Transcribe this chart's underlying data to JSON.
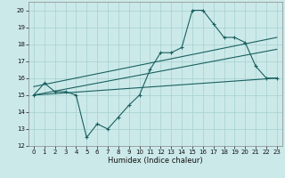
{
  "xlabel": "Humidex (Indice chaleur)",
  "xlim": [
    -0.5,
    23.5
  ],
  "ylim": [
    12,
    20.5
  ],
  "yticks": [
    12,
    13,
    14,
    15,
    16,
    17,
    18,
    19,
    20
  ],
  "xticks": [
    0,
    1,
    2,
    3,
    4,
    5,
    6,
    7,
    8,
    9,
    10,
    11,
    12,
    13,
    14,
    15,
    16,
    17,
    18,
    19,
    20,
    21,
    22,
    23
  ],
  "background_color": "#cce9e9",
  "grid_color": "#aad4d4",
  "line_color": "#1a6060",
  "line1_x": [
    0,
    1,
    2,
    3,
    4,
    5,
    6,
    7,
    8,
    9,
    10,
    11,
    12,
    13,
    14,
    15,
    16,
    17,
    18,
    19,
    20,
    21,
    22,
    23
  ],
  "line1_y": [
    15,
    15.7,
    15.2,
    15.2,
    15.0,
    12.5,
    13.3,
    13.0,
    13.7,
    14.4,
    15.0,
    16.5,
    17.5,
    17.5,
    17.8,
    20.0,
    20.0,
    19.2,
    18.4,
    18.4,
    18.1,
    16.7,
    16.0,
    16.0
  ],
  "line2_x": [
    0,
    23
  ],
  "line2_y": [
    15.0,
    17.7
  ],
  "line3_x": [
    0,
    23
  ],
  "line3_y": [
    15.0,
    16.0
  ],
  "line4_x": [
    0,
    23
  ],
  "line4_y": [
    15.5,
    18.4
  ]
}
